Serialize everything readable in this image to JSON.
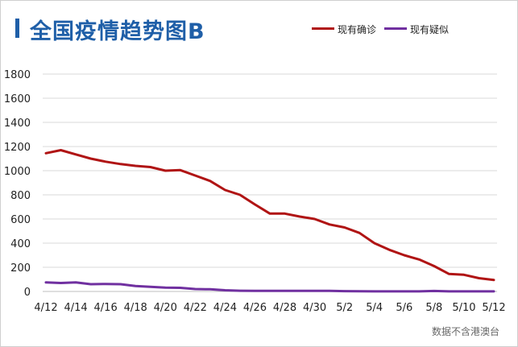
{
  "title": "全国疫情趋势图B",
  "source_note": "数据不含港澳台",
  "colors": {
    "title": "#1f5fa8",
    "confirmed": "#b01414",
    "suspected": "#7030a0",
    "grid": "#d9d9d9"
  },
  "chart_data": {
    "type": "line",
    "title": "全国疫情趋势图B",
    "xlabel": "",
    "ylabel": "",
    "grid": true,
    "legend": "top-right",
    "x": [
      "4/12",
      "4/13",
      "4/14",
      "4/15",
      "4/16",
      "4/17",
      "4/18",
      "4/19",
      "4/20",
      "4/21",
      "4/22",
      "4/23",
      "4/24",
      "4/25",
      "4/26",
      "4/27",
      "4/28",
      "4/29",
      "4/30",
      "5/1",
      "5/2",
      "5/3",
      "5/4",
      "5/5",
      "5/6",
      "5/7",
      "5/8",
      "5/9",
      "5/10",
      "5/11",
      "5/12"
    ],
    "x_tick_labels": [
      "4/12",
      "4/14",
      "4/16",
      "4/18",
      "4/20",
      "4/22",
      "4/24",
      "4/26",
      "4/28",
      "4/30",
      "5/2",
      "5/4",
      "5/6",
      "5/8",
      "5/10",
      "5/12"
    ],
    "y_ticks": [
      0,
      200,
      400,
      600,
      800,
      1000,
      1200,
      1400,
      1600,
      1800
    ],
    "ylim": [
      0,
      1800
    ],
    "series": [
      {
        "name": "现有确诊",
        "color": "#b01414",
        "values": [
          1145,
          1170,
          1135,
          1100,
          1075,
          1055,
          1040,
          1030,
          1000,
          1005,
          960,
          915,
          840,
          800,
          720,
          645,
          645,
          620,
          600,
          555,
          530,
          485,
          400,
          345,
          300,
          265,
          210,
          145,
          138,
          110,
          95
        ]
      },
      {
        "name": "现有疑似",
        "color": "#7030a0",
        "values": [
          75,
          70,
          75,
          60,
          62,
          60,
          45,
          38,
          32,
          30,
          20,
          18,
          10,
          6,
          5,
          5,
          5,
          5,
          5,
          5,
          3,
          2,
          1,
          1,
          1,
          1,
          4,
          1,
          1,
          1,
          1
        ]
      }
    ]
  }
}
